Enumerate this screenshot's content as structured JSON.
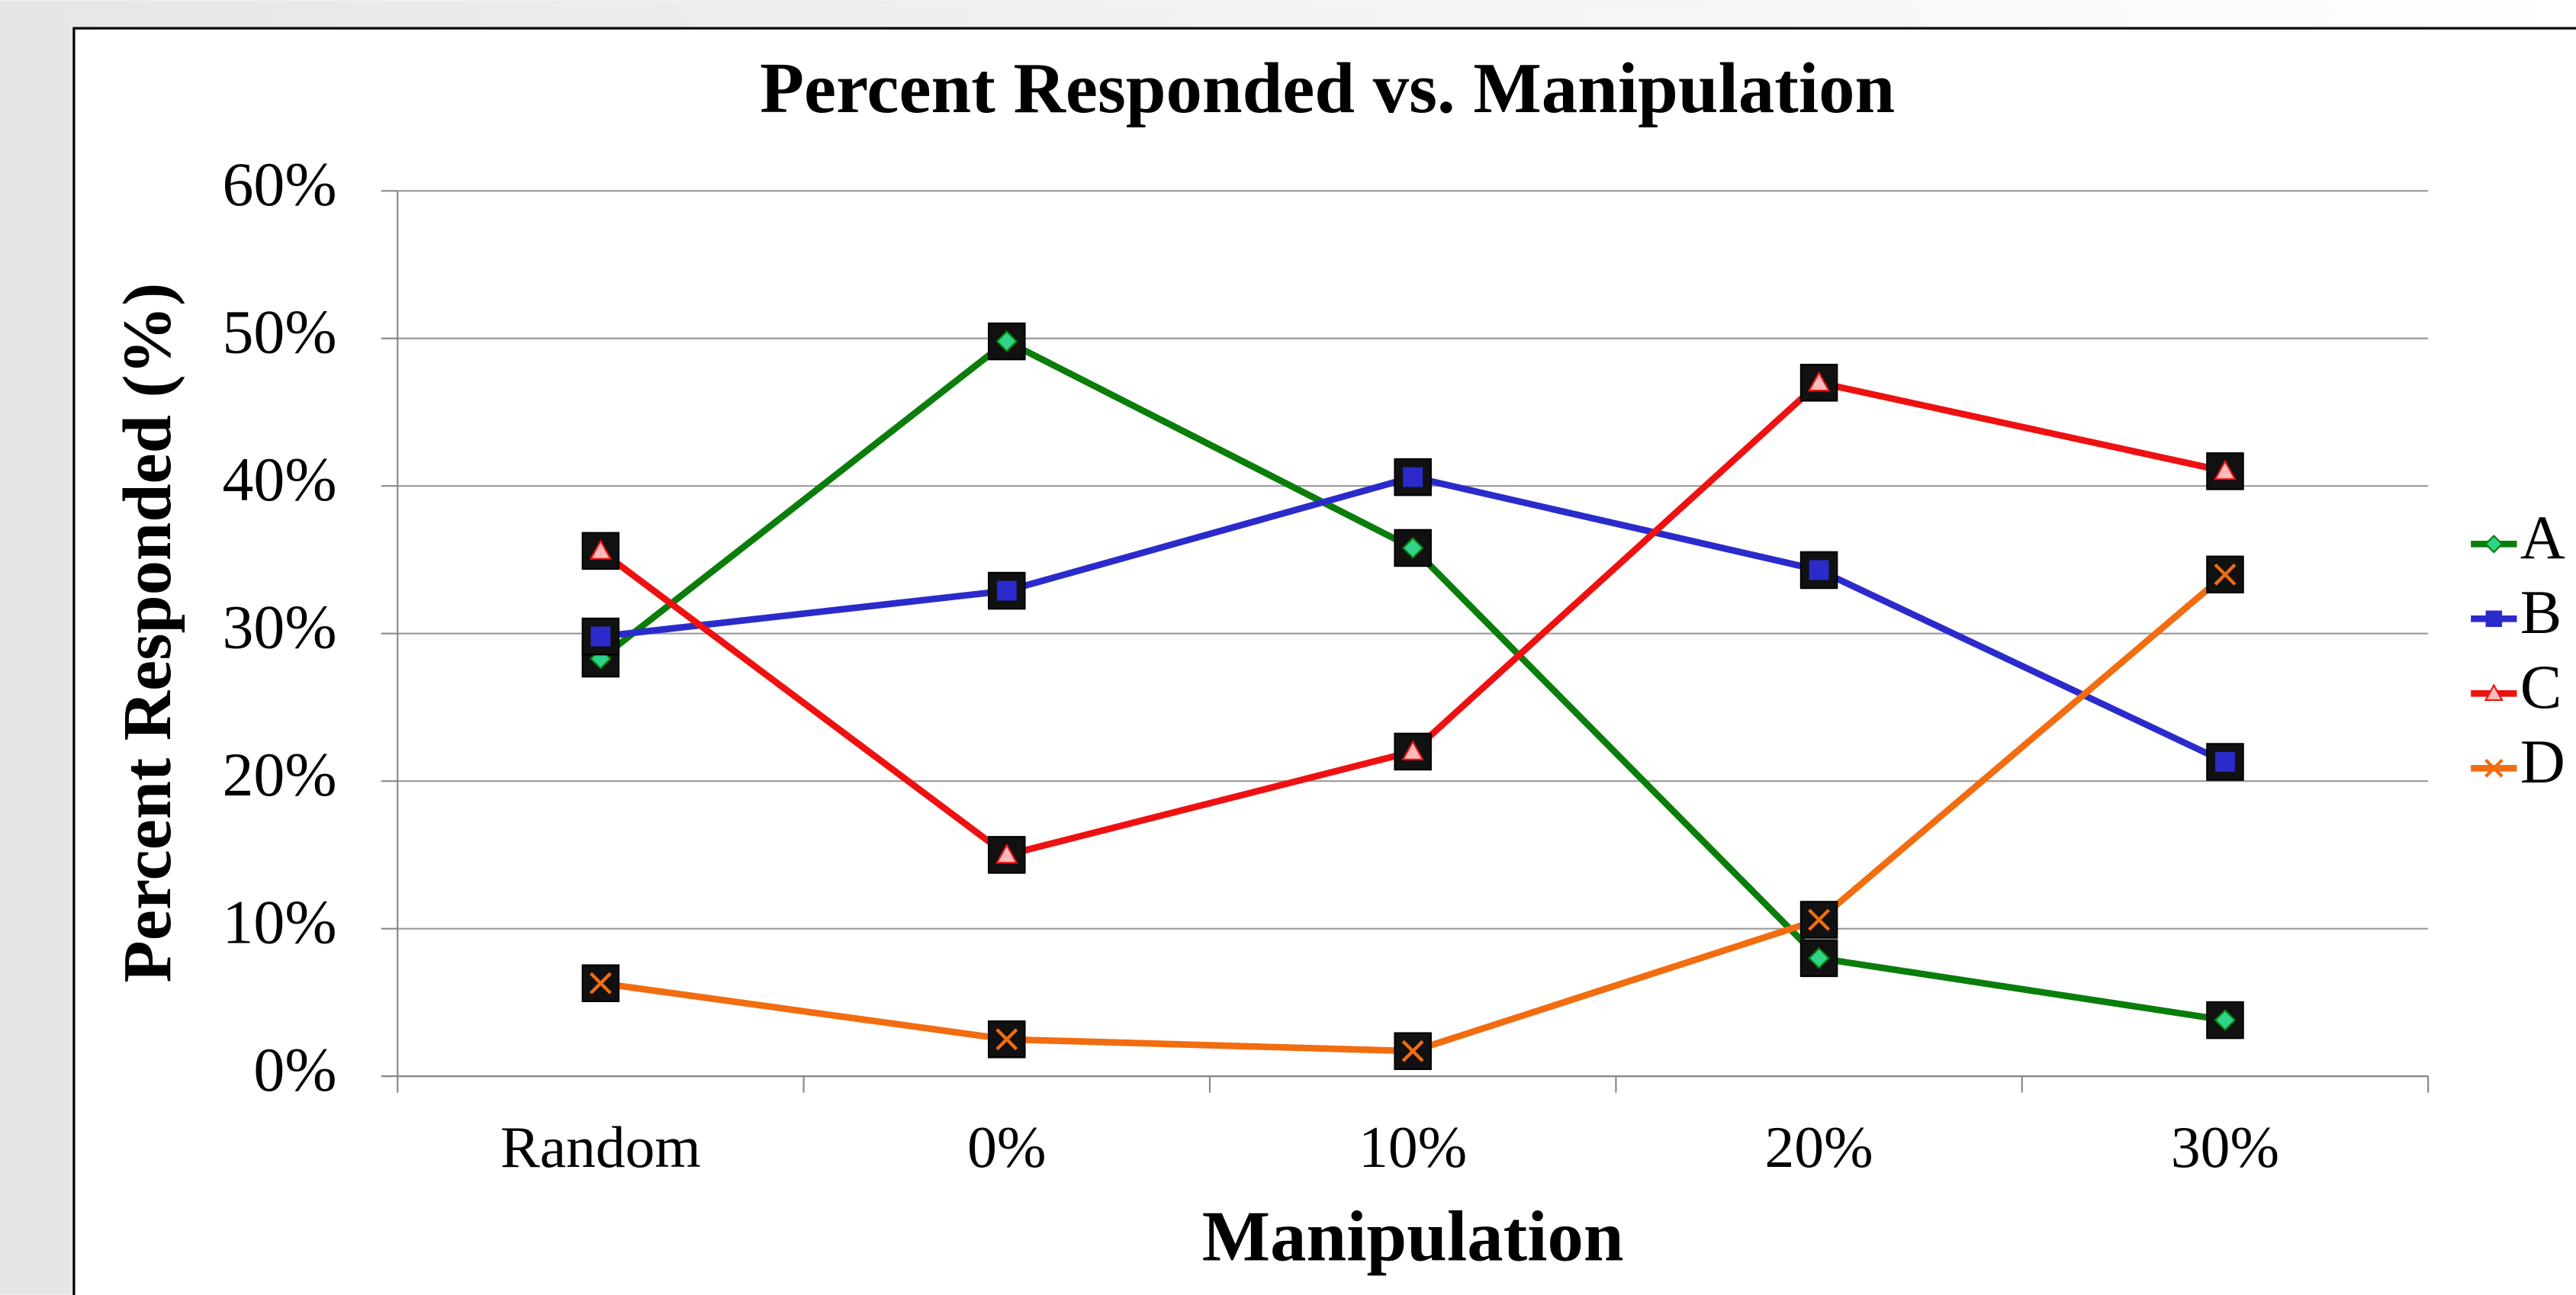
{
  "chart_data": {
    "type": "line",
    "title": "Percent Responded vs. Manipulation",
    "x_label": "Manipulation",
    "y_label": "Percent Responded (%)",
    "categories": [
      "Random",
      "0%",
      "10%",
      "20%",
      "30%"
    ],
    "series": [
      {
        "name": "A",
        "color": "#0a7d0a",
        "marker": "diamond",
        "values": [
          28.3,
          49.8,
          35.8,
          8.0,
          3.8
        ]
      },
      {
        "name": "B",
        "color": "#2b2bcc",
        "marker": "square",
        "values": [
          29.8,
          32.9,
          40.6,
          34.3,
          21.3
        ]
      },
      {
        "name": "C",
        "color": "#ee1111",
        "marker": "triangle",
        "values": [
          35.6,
          15.0,
          22.0,
          47.0,
          41.0
        ]
      },
      {
        "name": "D",
        "color": "#f26c10",
        "marker": "x",
        "values": [
          6.3,
          2.5,
          1.7,
          10.6,
          34.0
        ]
      }
    ],
    "ylim": [
      0,
      60
    ],
    "yticks": [
      {
        "value": 0,
        "label": "0%"
      },
      {
        "value": 10,
        "label": "10%"
      },
      {
        "value": 20,
        "label": "20%"
      },
      {
        "value": 30,
        "label": "30%"
      },
      {
        "value": 40,
        "label": "40%"
      },
      {
        "value": 50,
        "label": "50%"
      },
      {
        "value": 60,
        "label": "60%"
      }
    ],
    "grid": true,
    "legend": "right"
  }
}
